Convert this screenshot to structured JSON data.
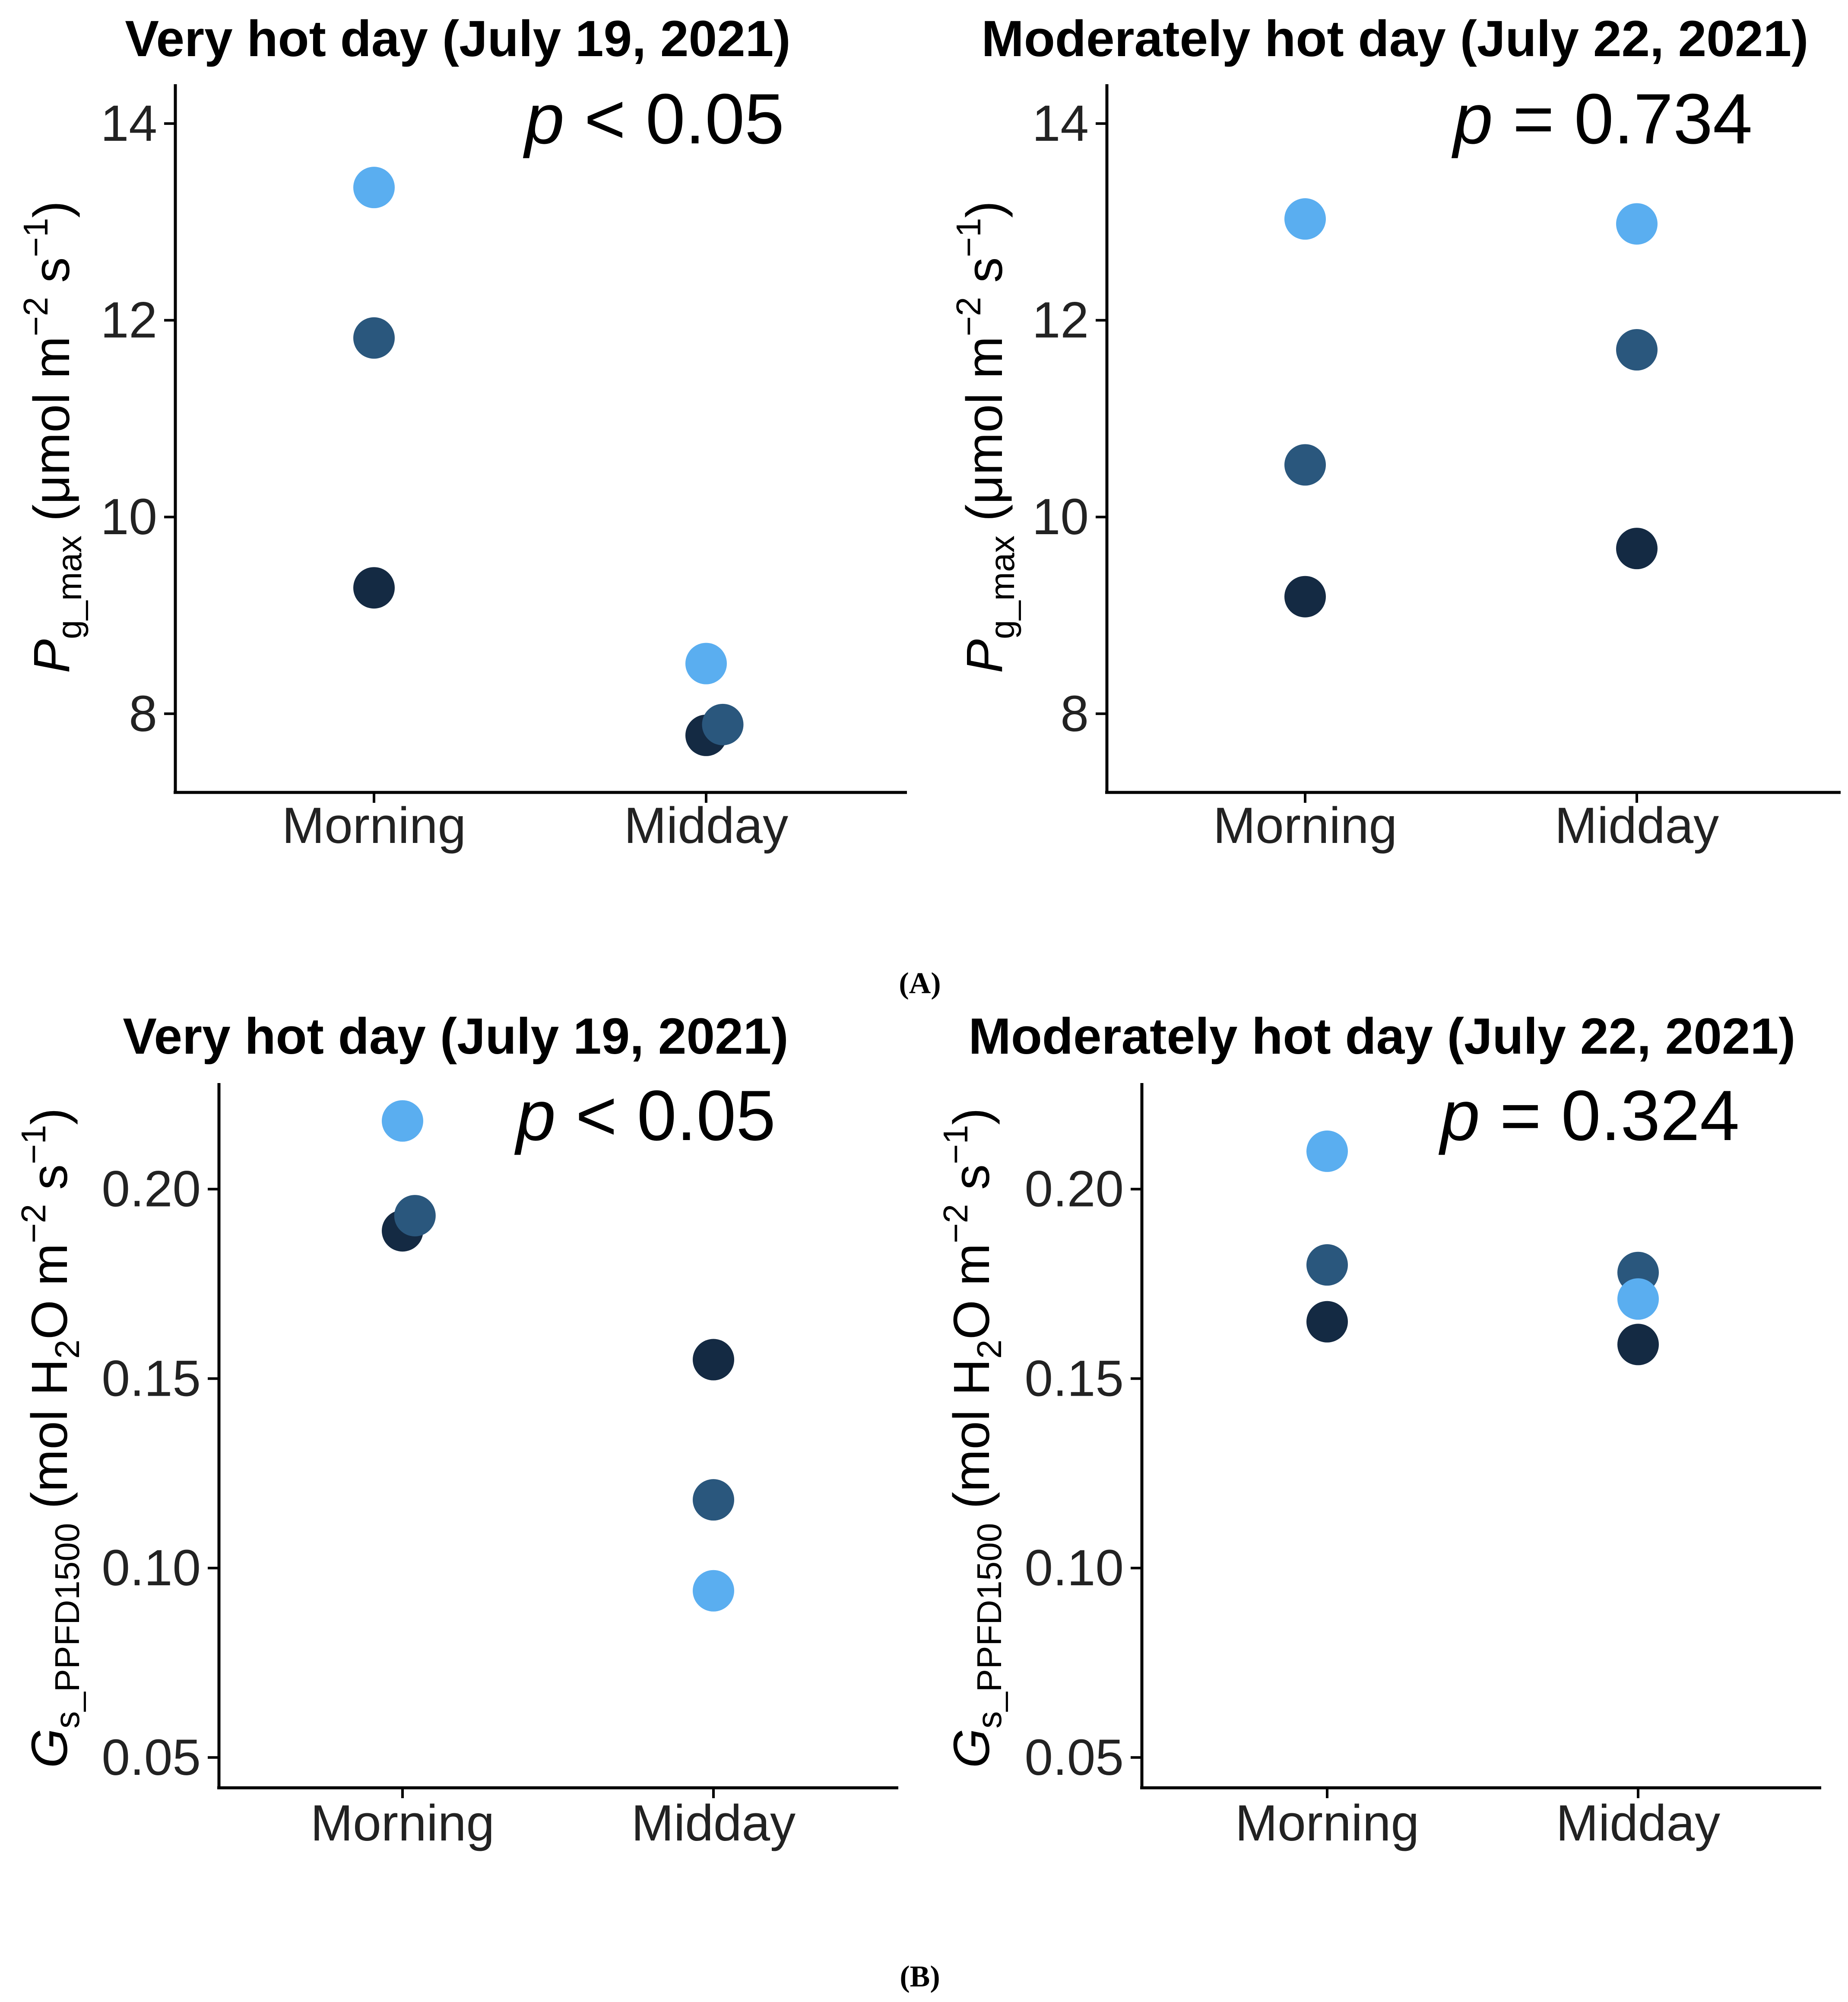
{
  "colors": {
    "light": "#5aaef0",
    "mid": "#2a577d",
    "dark": "#142a43"
  },
  "figure_labels": {
    "a": "(A)",
    "b": "(B)"
  },
  "chart_data": [
    {
      "type": "scatter",
      "panel": "A-left",
      "title": "Very hot day (July 19, 2021)",
      "p_letter": "p",
      "p_rest": " < 0.05",
      "ylabel": {
        "sym": "P",
        "sub": "g_max",
        "open": " (μmol m",
        "sup1": "−2",
        "mid": " s",
        "sup2": "−1",
        "close": ")"
      },
      "categories": [
        "Morning",
        "Midday"
      ],
      "ylim": [
        7.2,
        14.4
      ],
      "yticks": [
        8,
        10,
        12,
        14
      ],
      "ytick_labels": [
        "8",
        "10",
        "12",
        "14"
      ],
      "points": [
        {
          "cat": 0,
          "jitter": 0,
          "y": 13.35,
          "shade": "light"
        },
        {
          "cat": 0,
          "jitter": 0,
          "y": 11.82,
          "shade": "mid"
        },
        {
          "cat": 0,
          "jitter": 0,
          "y": 9.28,
          "shade": "dark"
        },
        {
          "cat": 1,
          "jitter": 0,
          "y": 8.51,
          "shade": "light"
        },
        {
          "cat": 1,
          "jitter": 0,
          "y": 7.78,
          "shade": "dark"
        },
        {
          "cat": 1,
          "jitter": 0.05,
          "y": 7.89,
          "shade": "mid"
        }
      ]
    },
    {
      "type": "scatter",
      "panel": "A-right",
      "title": "Moderately hot day (July 22, 2021)",
      "p_letter": "p",
      "p_rest": " = 0.734",
      "ylabel": {
        "sym": "P",
        "sub": "g_max",
        "open": " (μmol m",
        "sup1": "−2",
        "mid": " s",
        "sup2": "−1",
        "close": ")"
      },
      "categories": [
        "Morning",
        "Midday"
      ],
      "ylim": [
        7.2,
        14.4
      ],
      "yticks": [
        8,
        10,
        12,
        14
      ],
      "ytick_labels": [
        "8",
        "10",
        "12",
        "14"
      ],
      "points": [
        {
          "cat": 0,
          "jitter": 0,
          "y": 13.03,
          "shade": "light"
        },
        {
          "cat": 0,
          "jitter": 0,
          "y": 10.53,
          "shade": "mid"
        },
        {
          "cat": 0,
          "jitter": 0,
          "y": 9.19,
          "shade": "dark"
        },
        {
          "cat": 1,
          "jitter": 0,
          "y": 12.98,
          "shade": "light"
        },
        {
          "cat": 1,
          "jitter": 0,
          "y": 11.7,
          "shade": "mid"
        },
        {
          "cat": 1,
          "jitter": 0,
          "y": 9.68,
          "shade": "dark"
        }
      ]
    },
    {
      "type": "scatter",
      "panel": "B-left",
      "title": "Very hot day (July 19, 2021)",
      "p_letter": "p",
      "p_rest": " < 0.05",
      "ylabel": {
        "sym": "G",
        "sub": "s_PPFD1500",
        "open": " (mol H",
        "sub2": "2",
        "mid": "O m",
        "sup1": "−2",
        "mid2": " s",
        "sup2": "−1",
        "close": ")"
      },
      "categories": [
        "Morning",
        "Midday"
      ],
      "ylim": [
        0.042,
        0.228
      ],
      "yticks": [
        0.05,
        0.1,
        0.15,
        0.2
      ],
      "ytick_labels": [
        "0.05",
        "0.10",
        "0.15",
        "0.20"
      ],
      "points": [
        {
          "cat": 0,
          "jitter": 0,
          "y": 0.218,
          "shade": "light"
        },
        {
          "cat": 0,
          "jitter": 0,
          "y": 0.189,
          "shade": "dark"
        },
        {
          "cat": 0,
          "jitter": 0.04,
          "y": 0.193,
          "shade": "mid"
        },
        {
          "cat": 1,
          "jitter": 0,
          "y": 0.155,
          "shade": "dark"
        },
        {
          "cat": 1,
          "jitter": 0,
          "y": 0.118,
          "shade": "mid"
        },
        {
          "cat": 1,
          "jitter": 0,
          "y": 0.094,
          "shade": "light"
        }
      ]
    },
    {
      "type": "scatter",
      "panel": "B-right",
      "title": "Moderately hot day (July 22, 2021)",
      "p_letter": "p",
      "p_rest": " = 0.324",
      "ylabel": {
        "sym": "G",
        "sub": "s_PPFD1500",
        "open": " (mol H",
        "sub2": "2",
        "mid": "O m",
        "sup1": "−2",
        "mid2": " s",
        "sup2": "−1",
        "close": ")"
      },
      "categories": [
        "Morning",
        "Midday"
      ],
      "ylim": [
        0.042,
        0.228
      ],
      "yticks": [
        0.05,
        0.1,
        0.15,
        0.2
      ],
      "ytick_labels": [
        "0.05",
        "0.10",
        "0.15",
        "0.20"
      ],
      "points": [
        {
          "cat": 0,
          "jitter": 0,
          "y": 0.21,
          "shade": "light"
        },
        {
          "cat": 0,
          "jitter": 0,
          "y": 0.18,
          "shade": "mid"
        },
        {
          "cat": 0,
          "jitter": 0,
          "y": 0.165,
          "shade": "dark"
        },
        {
          "cat": 1,
          "jitter": 0,
          "y": 0.178,
          "shade": "mid"
        },
        {
          "cat": 1,
          "jitter": 0,
          "y": 0.171,
          "shade": "light"
        },
        {
          "cat": 1,
          "jitter": 0,
          "y": 0.159,
          "shade": "dark"
        }
      ]
    }
  ]
}
